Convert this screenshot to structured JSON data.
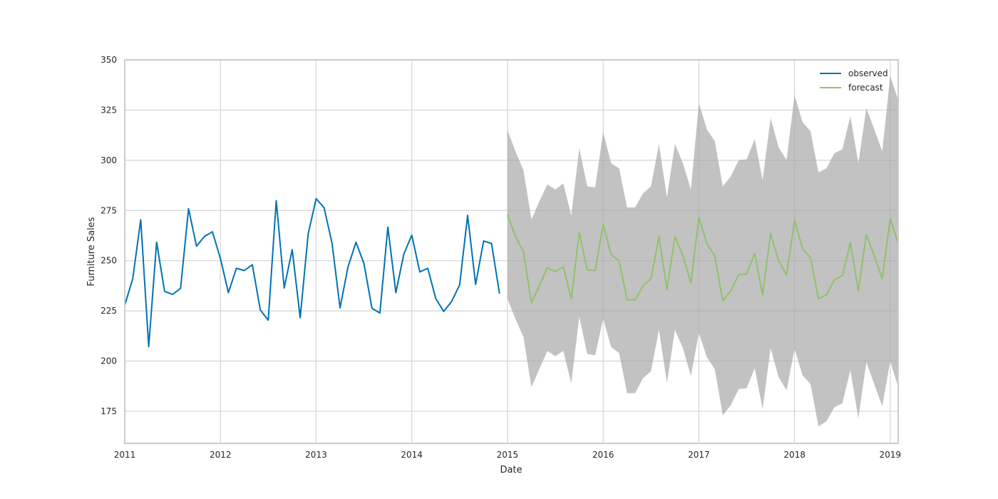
{
  "chart_data": {
    "type": "line",
    "xlabel": "Date",
    "ylabel": "Furniture Sales",
    "xlim": [
      "2011-01-01",
      "2019-02-01"
    ],
    "ylim": [
      159,
      350
    ],
    "x_ticks": [
      "2011",
      "2012",
      "2013",
      "2014",
      "2015",
      "2016",
      "2017",
      "2018",
      "2019"
    ],
    "y_ticks": [
      175,
      200,
      225,
      250,
      275,
      300,
      325,
      350
    ],
    "grid": true,
    "legend_position": "top-right",
    "colors": {
      "observed": "#0072b2",
      "forecast": "#8fc36b",
      "confidence_band": "#a8a8a8",
      "grid": "#d4d4d4",
      "frame": "#cccccc"
    },
    "series": [
      {
        "name": "observed",
        "x": [
          "2011-01",
          "2011-02",
          "2011-03",
          "2011-04",
          "2011-05",
          "2011-06",
          "2011-07",
          "2011-08",
          "2011-09",
          "2011-10",
          "2011-11",
          "2011-12",
          "2012-01",
          "2012-02",
          "2012-03",
          "2012-04",
          "2012-05",
          "2012-06",
          "2012-07",
          "2012-08",
          "2012-09",
          "2012-10",
          "2012-11",
          "2012-12",
          "2013-01",
          "2013-02",
          "2013-03",
          "2013-04",
          "2013-05",
          "2013-06",
          "2013-07",
          "2013-08",
          "2013-09",
          "2013-10",
          "2013-11",
          "2013-12",
          "2014-01",
          "2014-02",
          "2014-03",
          "2014-04",
          "2014-05",
          "2014-06",
          "2014-07",
          "2014-08",
          "2014-09",
          "2014-10",
          "2014-11",
          "2014-12"
        ],
        "values": [
          227.8,
          241,
          270.4,
          207.2,
          259.2,
          234.7,
          233.2,
          236.2,
          275.9,
          257.2,
          262.1,
          264.4,
          251.1,
          234.1,
          246.2,
          245.1,
          248,
          225.4,
          220.4,
          279.9,
          236.4,
          255.5,
          221.6,
          263.3,
          280.9,
          276.4,
          258.7,
          226.5,
          246.9,
          259.2,
          248.5,
          226.3,
          223.9,
          266.7,
          234.1,
          253.3,
          262.7,
          244.4,
          246.2,
          231.2,
          224.7,
          229.7,
          238,
          272.6,
          238.2,
          259.8,
          258.6,
          233.6
        ]
      },
      {
        "name": "forecast",
        "x": [
          "2015-01",
          "2015-02",
          "2015-03",
          "2015-04",
          "2015-05",
          "2015-06",
          "2015-07",
          "2015-08",
          "2015-09",
          "2015-10",
          "2015-11",
          "2015-12",
          "2016-01",
          "2016-02",
          "2016-03",
          "2016-04",
          "2016-05",
          "2016-06",
          "2016-07",
          "2016-08",
          "2016-09",
          "2016-10",
          "2016-11",
          "2016-12",
          "2017-01",
          "2017-02",
          "2017-03",
          "2017-04",
          "2017-05",
          "2017-06",
          "2017-07",
          "2017-08",
          "2017-09",
          "2017-10",
          "2017-11",
          "2017-12",
          "2018-01",
          "2018-02",
          "2018-03",
          "2018-04",
          "2018-05",
          "2018-06",
          "2018-07",
          "2018-08",
          "2018-09",
          "2018-10",
          "2018-11",
          "2018-12",
          "2019-01",
          "2019-02"
        ],
        "values": [
          273,
          262,
          254.5,
          229,
          237.5,
          246.5,
          244.5,
          247,
          231,
          264,
          245.5,
          245,
          268,
          253,
          250,
          230.5,
          230.5,
          237.5,
          241,
          262,
          235.5,
          262,
          252.5,
          239,
          271.5,
          258.5,
          252.5,
          230,
          235,
          243,
          243.5,
          253.5,
          233,
          263.5,
          250,
          243,
          270,
          256,
          251.5,
          231,
          233,
          240.5,
          242.5,
          259,
          235,
          263,
          252.5,
          241,
          271,
          258.5
        ],
        "lower": [
          231,
          221,
          212,
          187,
          196,
          205,
          202.5,
          205,
          189,
          222,
          203.5,
          203,
          221,
          207,
          204,
          184,
          184,
          191.5,
          195,
          215.5,
          189,
          215.5,
          206.5,
          192.5,
          214,
          202,
          196,
          173,
          178,
          186,
          186.5,
          196.5,
          176,
          206.5,
          192,
          185.5,
          206,
          193,
          188.5,
          167.5,
          170,
          177,
          179,
          195.5,
          171.5,
          199.5,
          188.5,
          177.5,
          200,
          187
        ],
        "upper": [
          315,
          304.5,
          295,
          270.5,
          279.5,
          288,
          285.5,
          288.5,
          272.5,
          306,
          287,
          286.5,
          314,
          298.5,
          296,
          276.5,
          276.5,
          283.5,
          287,
          308,
          281.5,
          308,
          298.5,
          285.5,
          328.5,
          315.5,
          309.5,
          287,
          292,
          300,
          300.5,
          310.5,
          290,
          321,
          306.5,
          300,
          332.5,
          319,
          314.5,
          294,
          296,
          303.5,
          305.5,
          322,
          298.5,
          326,
          315.5,
          304.5,
          342,
          330
        ]
      }
    ]
  }
}
